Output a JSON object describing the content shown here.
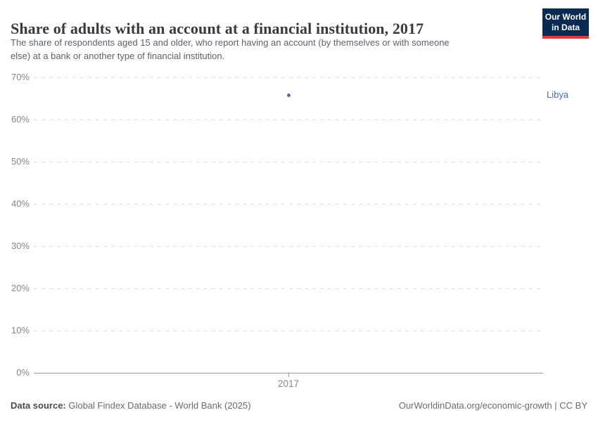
{
  "header": {
    "title": "Share of adults with an account at a financial institution, 2017",
    "subtitle_line1": "The share of respondents aged 15 and older, who report having an account (by themselves or with someone",
    "subtitle_line2": "else) at a bank or another type of financial institution.",
    "logo": {
      "line1": "Our World",
      "line2": "in Data",
      "bg_color": "#0b2a52",
      "bar_color": "#dc3d33"
    }
  },
  "chart_data": {
    "type": "scatter",
    "title": "Share of adults with an account at a financial institution, 2017",
    "x": [
      2017
    ],
    "series": [
      {
        "name": "Libya",
        "values": [
          65.7
        ],
        "color": "#4C6A9C"
      }
    ],
    "ylim": [
      0,
      70
    ],
    "xlabel": "",
    "ylabel": "",
    "grid": "horizontal-dashed",
    "legend_position": "right-of-plot",
    "y_ticks": [
      {
        "value": 0,
        "label": "0%"
      },
      {
        "value": 10,
        "label": "10%"
      },
      {
        "value": 20,
        "label": "20%"
      },
      {
        "value": 30,
        "label": "30%"
      },
      {
        "value": 40,
        "label": "40%"
      },
      {
        "value": 50,
        "label": "50%"
      },
      {
        "value": 60,
        "label": "60%"
      },
      {
        "value": 70,
        "label": "70%"
      }
    ],
    "x_ticks": [
      {
        "value": 2017,
        "label": "2017"
      }
    ]
  },
  "footer": {
    "source_label": "Data source:",
    "source_text": " Global Findex Database - World Bank (2025)",
    "right_text": "OurWorldinData.org/economic-growth | CC BY"
  }
}
